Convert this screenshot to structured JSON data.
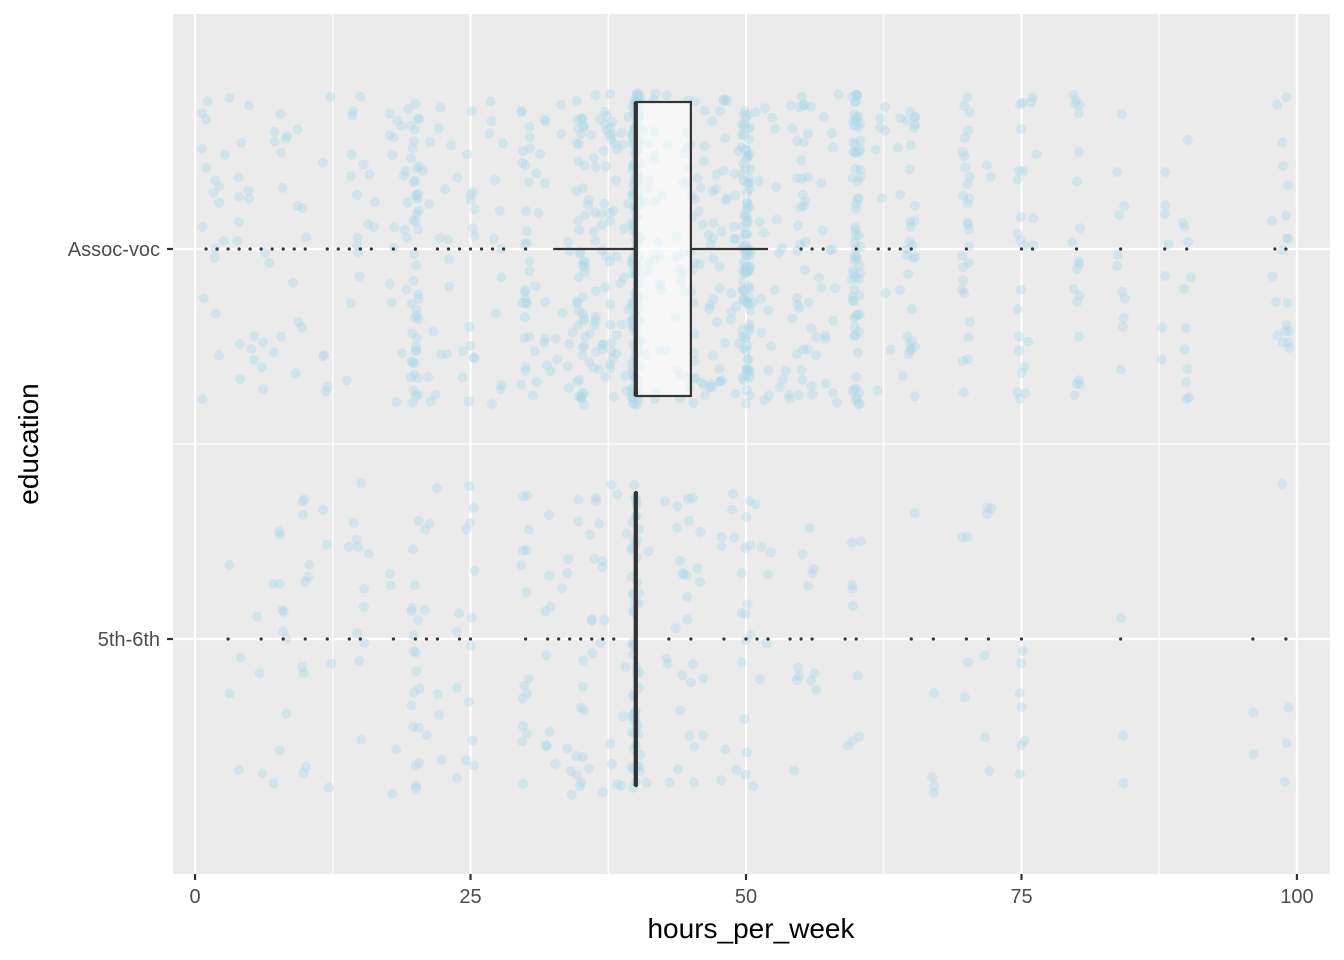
{
  "chart_data": {
    "type": "boxplot",
    "xlabel": "hours_per_week",
    "ylabel": "education",
    "xlim": [
      -2,
      103
    ],
    "x_ticks": [
      0,
      25,
      50,
      75,
      100
    ],
    "x_tick_labels": [
      "0",
      "25",
      "50",
      "75",
      "100"
    ],
    "categories": [
      "5th-6th",
      "Assoc-voc"
    ],
    "grid": true,
    "background": "#ebebeb",
    "point_color": "#add8e6",
    "box_line_color": "#333333",
    "box_fill": "#ffffff",
    "groups": [
      {
        "category": "Assoc-voc",
        "min": 32.5,
        "q1": 40,
        "median": 40,
        "q3": 45,
        "max": 52,
        "outliers": [
          1,
          2,
          3,
          4,
          5,
          6,
          7,
          8,
          9,
          10,
          12,
          13,
          14,
          15,
          16,
          18,
          20,
          22,
          23,
          24,
          25,
          26,
          27,
          28,
          30,
          55,
          56,
          57,
          60,
          62,
          63,
          64,
          65,
          70,
          75,
          76,
          80,
          84,
          88,
          90,
          98,
          99
        ],
        "jitter_x": [
          1,
          2,
          3,
          4,
          5,
          6,
          7,
          8,
          9,
          10,
          12,
          14,
          15,
          15,
          16,
          18,
          19,
          20,
          20,
          20,
          20,
          20,
          20,
          20,
          21,
          22,
          23,
          24,
          25,
          25,
          25,
          27,
          28,
          30,
          30,
          30,
          30,
          30,
          30,
          30,
          31,
          32,
          32,
          33,
          34,
          35,
          35,
          35,
          35,
          35,
          35,
          35,
          35,
          36,
          36,
          36,
          37,
          37,
          37,
          38,
          38,
          38,
          38,
          39,
          40,
          40,
          40,
          40,
          40,
          40,
          40,
          40,
          40,
          40,
          40,
          40,
          40,
          40,
          40,
          40,
          40,
          40,
          40,
          40,
          40,
          40,
          40,
          40,
          40,
          40,
          40,
          41,
          41,
          42,
          42,
          42,
          43,
          43,
          44,
          44,
          45,
          45,
          45,
          45,
          45,
          46,
          46,
          47,
          47,
          48,
          48,
          48,
          48,
          49,
          49,
          50,
          50,
          50,
          50,
          50,
          50,
          50,
          50,
          50,
          50,
          50,
          50,
          50,
          50,
          50,
          50,
          51,
          52,
          52,
          53,
          54,
          55,
          55,
          55,
          55,
          56,
          56,
          57,
          58,
          60,
          60,
          60,
          60,
          60,
          60,
          60,
          60,
          60,
          60,
          62,
          63,
          64,
          65,
          65,
          65,
          65,
          70,
          70,
          70,
          70,
          70,
          72,
          75,
          75,
          75,
          76,
          80,
          80,
          80,
          84,
          84,
          88,
          90,
          90,
          98,
          99,
          99,
          99
        ],
        "n_points": 1060
      },
      {
        "category": "5th-6th",
        "min": 40,
        "q1": 40,
        "median": 40,
        "q3": 40,
        "max": 40,
        "outliers": [
          3,
          6,
          8,
          10,
          12,
          14,
          15,
          18,
          20,
          21,
          22,
          24,
          25,
          30,
          32,
          33,
          34,
          35,
          36,
          37,
          38,
          43,
          45,
          48,
          50,
          51,
          52,
          54,
          55,
          56,
          59,
          60,
          65,
          67,
          70,
          72,
          75,
          84,
          96,
          99
        ],
        "jitter_x": [
          3,
          4,
          6,
          7,
          8,
          8,
          10,
          10,
          10,
          12,
          12,
          14,
          15,
          15,
          16,
          18,
          20,
          20,
          20,
          20,
          20,
          21,
          22,
          24,
          25,
          25,
          25,
          25,
          30,
          30,
          30,
          30,
          30,
          32,
          32,
          33,
          34,
          35,
          35,
          35,
          35,
          36,
          36,
          37,
          37,
          38,
          38,
          39,
          40,
          40,
          40,
          40,
          40,
          40,
          40,
          40,
          40,
          40,
          40,
          40,
          40,
          40,
          40,
          40,
          40,
          40,
          40,
          41,
          43,
          44,
          45,
          45,
          45,
          46,
          48,
          48,
          49,
          50,
          50,
          50,
          50,
          51,
          52,
          54,
          55,
          55,
          56,
          59,
          60,
          60,
          60,
          65,
          67,
          70,
          72,
          75,
          75,
          84,
          96,
          99
        ],
        "n_points": 320
      }
    ]
  }
}
